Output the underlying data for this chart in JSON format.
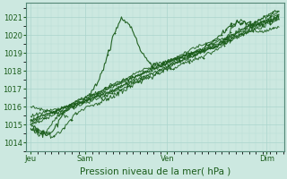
{
  "title": "Pression niveau de la mer( hPa )",
  "bg_color": "#cce8e0",
  "grid_color_major": "#aad4cc",
  "grid_color_minor": "#b8ddd6",
  "line_color": "#1a5c1a",
  "ylim": [
    1013.5,
    1021.8
  ],
  "yticks": [
    1014,
    1015,
    1016,
    1017,
    1018,
    1019,
    1020,
    1021
  ],
  "x_tick_labels": [
    "Jeu",
    "Sam",
    "Ven",
    "Dim"
  ],
  "x_tick_positions": [
    0.0,
    0.22,
    0.55,
    0.95
  ],
  "xlim": [
    -0.02,
    1.02
  ],
  "title_fontsize": 7.5,
  "tick_fontsize": 6.0,
  "line_width": 0.7
}
